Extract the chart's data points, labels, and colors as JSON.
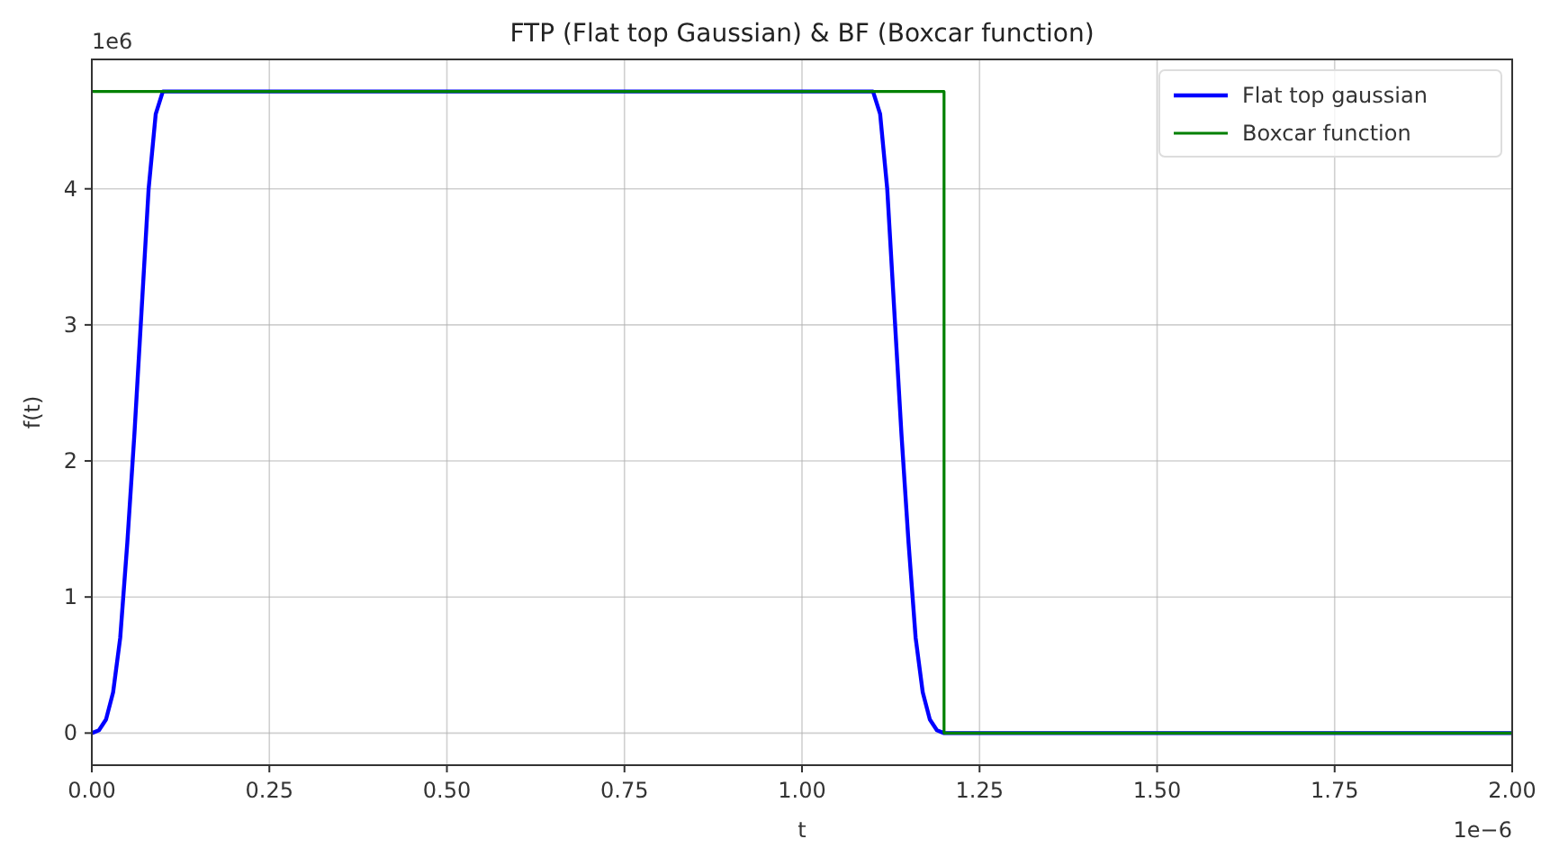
{
  "chart_data": {
    "type": "line",
    "title": "FTP (Flat top Gaussian) & BF (Boxcar function)",
    "xlabel": "t",
    "ylabel": "f(t)",
    "annotations": [
      "1e6",
      "1e−6"
    ],
    "series": [
      {
        "name": "Flat top gaussian",
        "color": "#0000ff",
        "x": [
          0,
          0.01,
          0.02,
          0.03,
          0.04,
          0.05,
          0.06,
          0.07,
          0.08,
          0.09,
          0.1,
          1.1,
          1.11,
          1.12,
          1.13,
          1.14,
          1.15,
          1.16,
          1.17,
          1.18,
          1.19,
          1.2,
          2.0
        ],
        "values": [
          0,
          0.02,
          0.1,
          0.3,
          0.7,
          1.4,
          2.2,
          3.1,
          4.0,
          4.55,
          4.715,
          4.715,
          4.55,
          4.0,
          3.1,
          2.2,
          1.4,
          0.7,
          0.3,
          0.1,
          0.02,
          0,
          0
        ]
      },
      {
        "name": "Boxcar function",
        "color": "#008000",
        "x": [
          0,
          1.2,
          1.2,
          2.0
        ],
        "values": [
          4.715,
          4.715,
          0,
          0
        ]
      }
    ],
    "xlim": [
      0,
      2
    ],
    "ylim": [
      -0.236,
      4.951
    ],
    "xticks": [
      {
        "value": 0,
        "label": "0.00"
      },
      {
        "value": 0.25,
        "label": "0.25"
      },
      {
        "value": 0.5,
        "label": "0.50"
      },
      {
        "value": 0.75,
        "label": "0.75"
      },
      {
        "value": 1,
        "label": "1.00"
      },
      {
        "value": 1.25,
        "label": "1.25"
      },
      {
        "value": 1.5,
        "label": "1.50"
      },
      {
        "value": 1.75,
        "label": "1.75"
      },
      {
        "value": 2,
        "label": "2.00"
      }
    ],
    "yticks": [
      0,
      1,
      2,
      3,
      4
    ],
    "grid": true,
    "legend": "top right"
  }
}
